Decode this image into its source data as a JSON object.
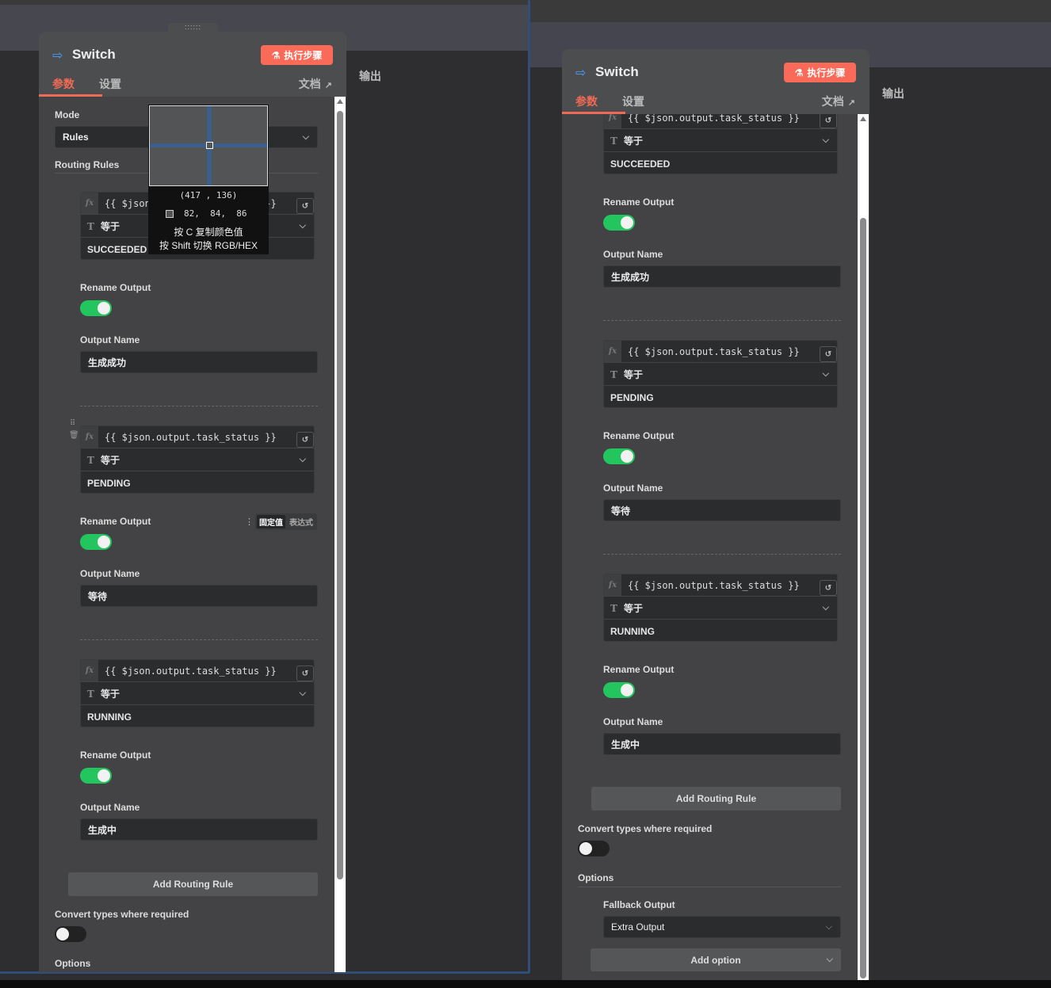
{
  "panel": {
    "title": "Switch",
    "run_button": "执行步骤",
    "tabs": [
      "参数",
      "设置"
    ],
    "docs_link": "文档",
    "output_label": "输出",
    "mode_label": "Mode",
    "mode_value": "Rules",
    "routing_rules_label": "Routing Rules",
    "rules": [
      {
        "expression": "{{ $json.output.task_status }}",
        "operator": "等于",
        "value": "SUCCEEDED",
        "rename_label": "Rename Output",
        "rename_on": true,
        "output_name_label": "Output Name",
        "output_name": "生成成功"
      },
      {
        "expression": "{{ $json.output.task_status }}",
        "operator": "等于",
        "value": "PENDING",
        "rename_label": "Rename Output",
        "rename_on": true,
        "output_name_label": "Output Name",
        "output_name": "等待"
      },
      {
        "expression": "{{ $json.output.task_status }}",
        "operator": "等于",
        "value": "RUNNING",
        "rename_label": "Rename Output",
        "rename_on": true,
        "output_name_label": "Output Name",
        "output_name": "生成中"
      }
    ],
    "value_mode_toggle": [
      "固定值",
      "表达式"
    ],
    "add_rule_button": "Add Routing Rule",
    "convert_types_label": "Convert types where required",
    "convert_types_on": false,
    "options_label": "Options",
    "fallback_output_label": "Fallback Output",
    "fallback_output_value": "Extra Output",
    "add_option_button": "Add option"
  },
  "color_picker": {
    "coords": "(417 , 136)",
    "rgb": "82,  84,  86",
    "hint_copy": "按 C 复制颜色值",
    "hint_toggle": "按 Shift 切换 RGB/HEX"
  },
  "colors": {
    "accent": "#f06a56",
    "run_button": "#fa6a58",
    "toggle_on": "#22c55e",
    "icon_blue": "#4a9df8"
  }
}
